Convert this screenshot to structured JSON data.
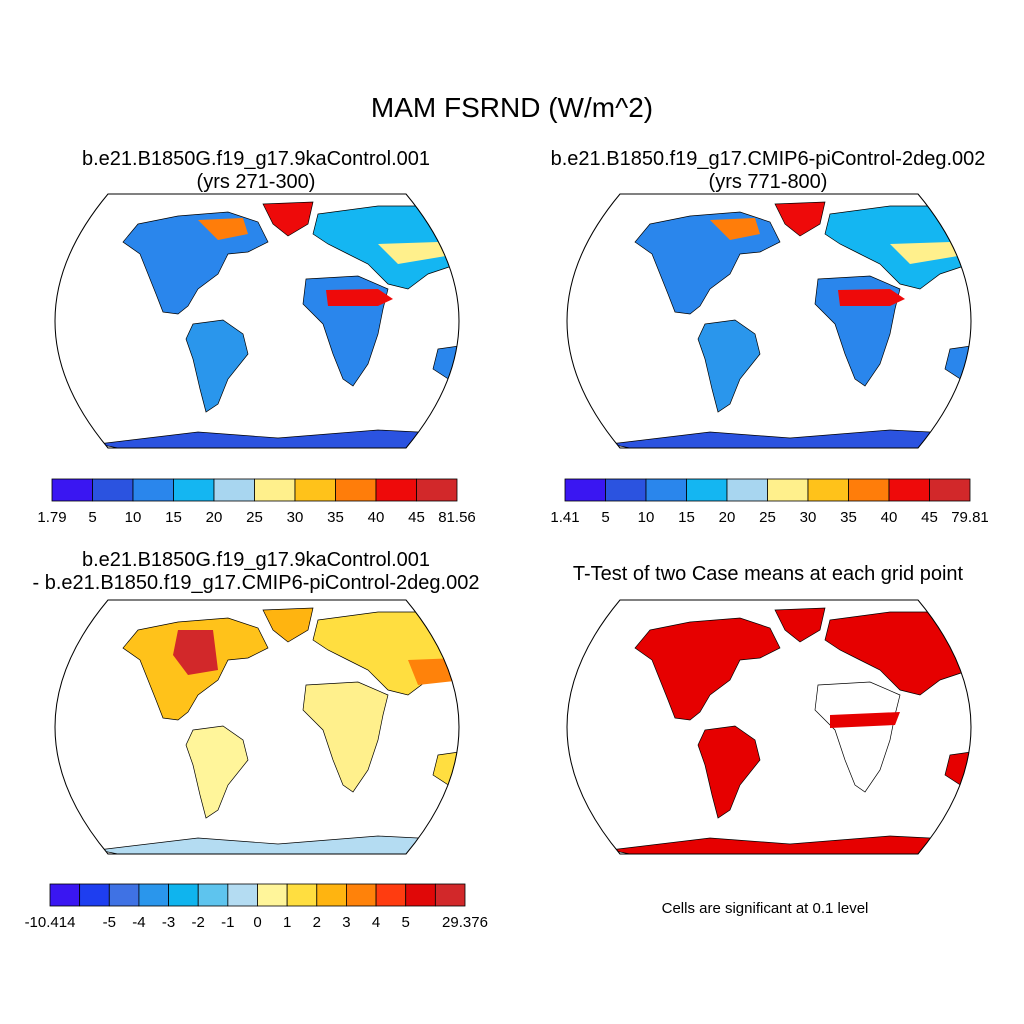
{
  "title": "MAM FSRND (W/m^2)",
  "panels": [
    {
      "id": "case1",
      "title_line1": "b.e21.B1850G.f19_g17.9kaControl.001",
      "title_line2": "(yrs 271-300)"
    },
    {
      "id": "case2",
      "title_line1": "b.e21.B1850.f19_g17.CMIP6-piControl-2deg.002",
      "title_line2": "(yrs 771-800)"
    },
    {
      "id": "diff",
      "title_line1": "b.e21.B1850G.f19_g17.9kaControl.001",
      "title_line2": "- b.e21.B1850.f19_g17.CMIP6-piControl-2deg.002"
    },
    {
      "id": "ttest",
      "title_line1": "T-Test of two Case means at each grid point",
      "title_line2": "",
      "note": "Cells are significant at 0.1 level"
    }
  ],
  "colorbars": [
    {
      "id": "cb1",
      "labels": [
        "1.79",
        "5",
        "10",
        "15",
        "20",
        "25",
        "30",
        "35",
        "40",
        "45",
        "81.56"
      ],
      "colors": [
        "#3a16f2",
        "#2b53e0",
        "#2a86ec",
        "#14b6f2",
        "#a8d6f0",
        "#fff08c",
        "#ffc21a",
        "#ff7d0a",
        "#ee0a0a",
        "#d2282a"
      ]
    },
    {
      "id": "cb2",
      "labels": [
        "1.41",
        "5",
        "10",
        "15",
        "20",
        "25",
        "30",
        "35",
        "40",
        "45",
        "79.81"
      ],
      "colors": [
        "#3a16f2",
        "#2b53e0",
        "#2a86ec",
        "#14b6f2",
        "#a8d6f0",
        "#fff08c",
        "#ffc21a",
        "#ff7d0a",
        "#ee0a0a",
        "#d2282a"
      ]
    },
    {
      "id": "cb3",
      "labels": [
        "-10.414",
        "-5",
        "-4",
        "-3",
        "-2",
        "-1",
        "0",
        "1",
        "2",
        "3",
        "4",
        "5",
        "29.376"
      ],
      "colors": [
        "#3a16f2",
        "#1e3ef0",
        "#3f72e4",
        "#2a96ec",
        "#0fb4ee",
        "#5ec4ee",
        "#b4dcf2",
        "#fff59a",
        "#ffde40",
        "#ffb410",
        "#ff820a",
        "#ff3c10",
        "#e00808",
        "#d2282a"
      ]
    }
  ],
  "colors": {
    "significant": "#e60000",
    "coast": "#000000"
  }
}
